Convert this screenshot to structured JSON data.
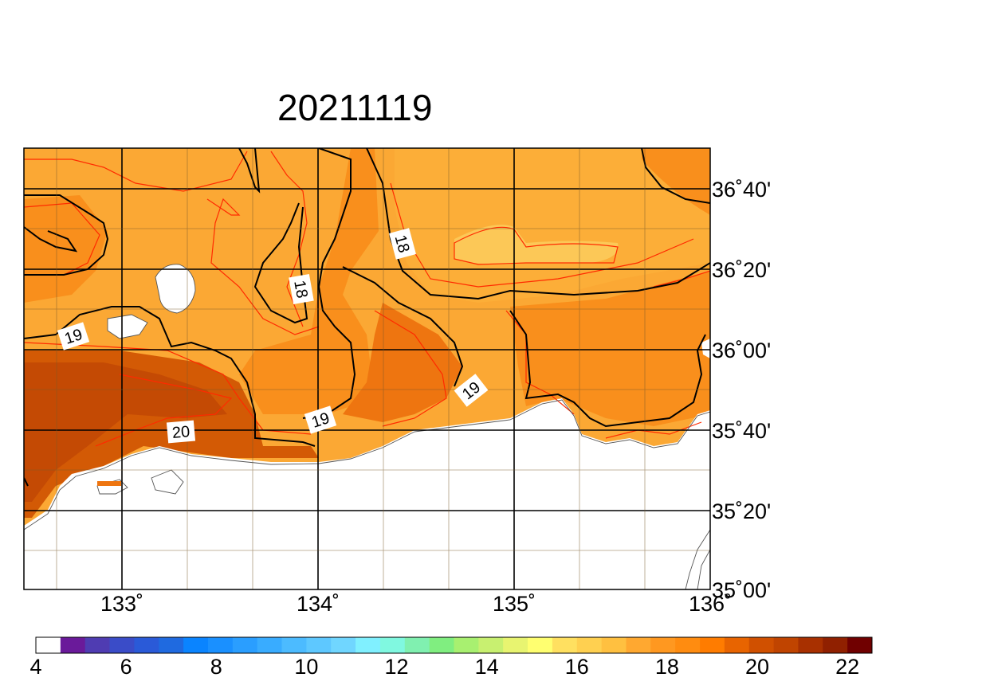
{
  "title": "20211119",
  "map": {
    "lon_labels": [
      "133˚",
      "134˚",
      "135˚",
      "136˚"
    ],
    "lat_labels": [
      "36˚40'",
      "36˚20'",
      "36˚00'",
      "35˚40'",
      "35˚20'",
      "35˚00'"
    ],
    "contour_labels": [
      "19",
      "18",
      "18",
      "19",
      "19",
      "20",
      "19"
    ]
  },
  "colorbar": {
    "labels": [
      "4",
      "6",
      "8",
      "10",
      "12",
      "14",
      "16",
      "18",
      "20",
      "22"
    ],
    "colors": [
      "#ffffff",
      "#6a1a9a",
      "#4f3cb2",
      "#3a4cc8",
      "#2a5ad8",
      "#1f6ae0",
      "#0a84ff",
      "#1a90ff",
      "#2a9eff",
      "#39acff",
      "#4cbbff",
      "#5ec8ff",
      "#70d6ff",
      "#80f0ff",
      "#80f8e0",
      "#80f0b0",
      "#80ee80",
      "#a8f070",
      "#c8f070",
      "#e8f470",
      "#ffff70",
      "#ffe060",
      "#ffd050",
      "#ffc040",
      "#ffa830",
      "#ff9820",
      "#ff8c10",
      "#ff7c00",
      "#e86400",
      "#d05000",
      "#c04400",
      "#a83000",
      "#902000",
      "#700000"
    ]
  }
}
